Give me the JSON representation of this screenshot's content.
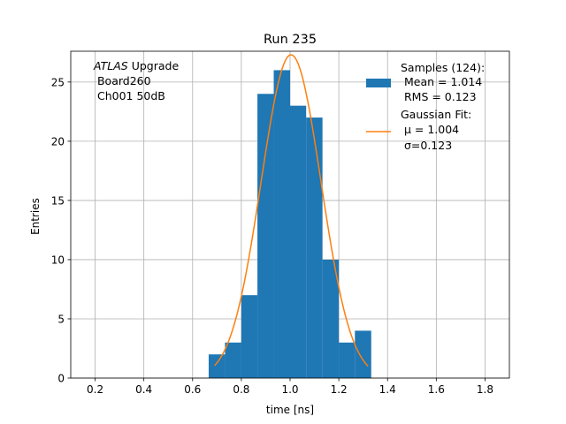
{
  "chart_data": {
    "type": "bar",
    "title": "Run 235",
    "xlabel": "time [ns]",
    "ylabel": "Entries",
    "xlim": [
      0.1,
      1.9
    ],
    "ylim": [
      0,
      27.6
    ],
    "xticks": [
      "0.2",
      "0.4",
      "0.6",
      "0.8",
      "1.0",
      "1.2",
      "1.4",
      "1.6",
      "1.8"
    ],
    "yticks": [
      "0",
      "5",
      "10",
      "15",
      "20",
      "25"
    ],
    "grid": true,
    "bin_edges": [
      0.666,
      0.733,
      0.8,
      0.866,
      0.933,
      1.0,
      1.066,
      1.133,
      1.2,
      1.266,
      1.333
    ],
    "bin_counts": [
      2,
      3,
      7,
      24,
      26,
      23,
      22,
      10,
      3,
      4
    ],
    "bar_color": "#1f77b4",
    "fit": {
      "mu": 1.004,
      "sigma": 0.123,
      "amplitude": 27.3,
      "x_range": [
        0.69,
        1.32
      ],
      "color": "#ff7f0e"
    },
    "annotation": {
      "line1_italic": "ATLAS",
      "line1_rest": " Upgrade",
      "line2": " Board260",
      "line3": " Ch001 50dB"
    },
    "legend": {
      "placement": "top-right",
      "samples_lines": [
        "Samples (124):",
        " Mean = 1.014",
        " RMS = 0.123"
      ],
      "fit_lines": [
        "Gaussian Fit:",
        " μ = 1.004",
        " σ=0.123"
      ]
    }
  }
}
